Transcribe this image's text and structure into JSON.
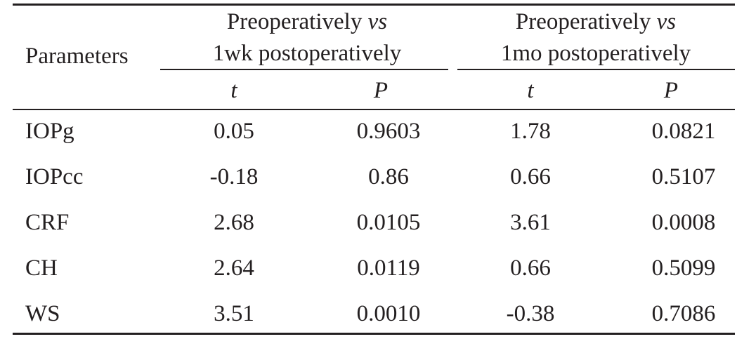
{
  "table": {
    "header": {
      "parameters": "Parameters",
      "group1": {
        "line1_prefix": "Preoperatively ",
        "line1_vs": "vs",
        "line2": "1wk postoperatively"
      },
      "group2": {
        "line1_prefix": "Preoperatively ",
        "line1_vs": "vs",
        "line2": "1mo postoperatively"
      },
      "sub": [
        "t",
        "P",
        "t",
        "P"
      ]
    },
    "rows": [
      {
        "parameter": "IOPg",
        "t1": "0.05",
        "p1": "0.9603",
        "t2": "1.78",
        "p2": "0.0821"
      },
      {
        "parameter": "IOPcc",
        "t1": "-0.18",
        "p1": "0.86",
        "t2": "0.66",
        "p2": "0.5107"
      },
      {
        "parameter": "CRF",
        "t1": "2.68",
        "p1": "0.0105",
        "t2": "3.61",
        "p2": "0.0008"
      },
      {
        "parameter": "CH",
        "t1": "2.64",
        "p1": "0.0119",
        "t2": "0.66",
        "p2": "0.5099"
      },
      {
        "parameter": "WS",
        "t1": "3.51",
        "p1": "0.0010",
        "t2": "-0.38",
        "p2": "0.7086"
      }
    ]
  }
}
